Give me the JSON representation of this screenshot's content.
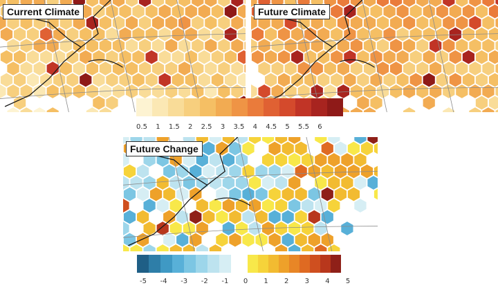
{
  "panels": {
    "current": {
      "title": "Current Climate"
    },
    "future": {
      "title": "Future Climate"
    },
    "change": {
      "title": "Future Change"
    }
  },
  "legend_absolute": {
    "ticks": [
      "0.5",
      "1",
      "1.5",
      "2",
      "2.5",
      "3",
      "3.5",
      "4",
      "4.5",
      "5",
      "5.5",
      "6"
    ],
    "colors": [
      "#fdf3d2",
      "#fbe8b4",
      "#f9dc98",
      "#f7cf7e",
      "#f5bf64",
      "#f2ab52",
      "#ef9445",
      "#ea7b3b",
      "#e06133",
      "#d44a2c",
      "#c13426",
      "#a8241f",
      "#8f1a18"
    ]
  },
  "legend_change": {
    "ticks": [
      "-5",
      "-4",
      "-3",
      "-2",
      "-1",
      "0",
      "1",
      "2",
      "3",
      "4",
      "5"
    ],
    "neg_colors": [
      "#1f5f86",
      "#2e7ea8",
      "#3f99c4",
      "#58b0d8",
      "#7cc6e3",
      "#9dd6ea",
      "#bde3ef",
      "#d6eef4"
    ],
    "pos_colors": [
      "#f8e84a",
      "#f6d33a",
      "#f2bb31",
      "#eea12a",
      "#e88626",
      "#df6a22",
      "#cf4f1f",
      "#b8371c",
      "#8f2018"
    ]
  },
  "colors": {
    "land": "#ffffff",
    "border": "#1a1a1a",
    "grid": "#8a8a8a",
    "neutral_hex": "#ffffff"
  }
}
